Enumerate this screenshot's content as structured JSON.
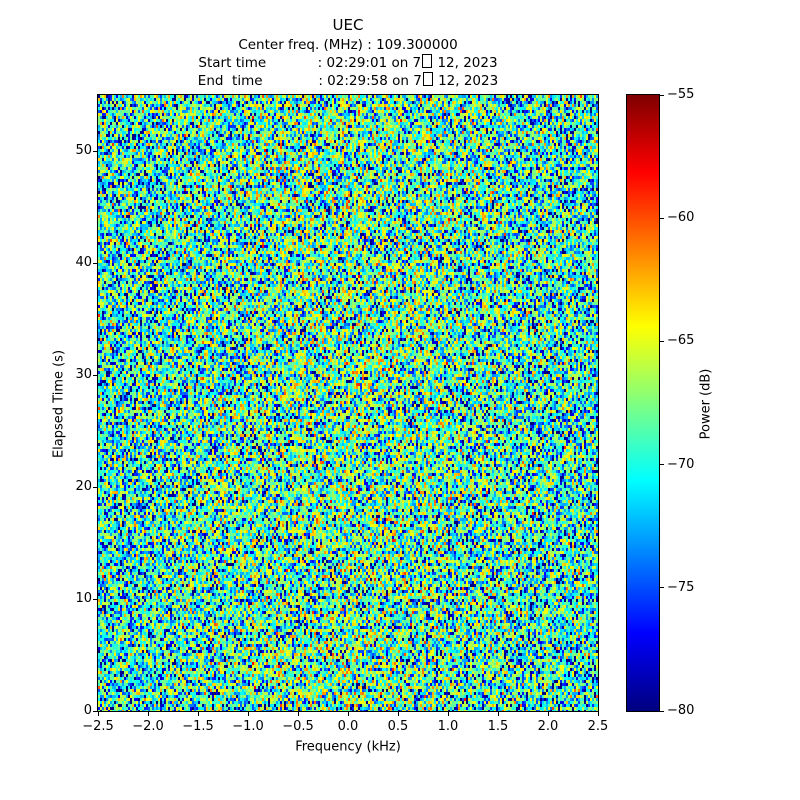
{
  "figure": {
    "header": {
      "title": "UEC",
      "center_freq_line": "Center freq. (MHz) : 109.300000",
      "start_line_prefix": "Start time            : 02:29:01 on 7",
      "start_line_suffix": " 12, 2023",
      "end_line_prefix": "End  time             : 02:29:58 on 7",
      "end_line_suffix": " 12, 2023",
      "missing_glyph": "□"
    }
  },
  "chart_data": {
    "type": "heatmap",
    "subtype": "spectrogram-waterfall",
    "title": "UEC",
    "center_freq_mhz": "109.300000",
    "start_time": "02:29:01 on 7 12, 2023",
    "end_time": "02:29:58 on 7 12, 2023",
    "xlabel": "Frequency (kHz)",
    "ylabel": "Elapsed Time (s)",
    "xlim": [
      -2.5,
      2.5
    ],
    "ylim": [
      0,
      55
    ],
    "xticks": [
      -2.5,
      -2.0,
      -1.5,
      -1.0,
      -0.5,
      0.0,
      0.5,
      1.0,
      1.5,
      2.0,
      2.5
    ],
    "xtick_labels": [
      "−2.5",
      "−2.0",
      "−1.5",
      "−1.0",
      "−0.5",
      "0.0",
      "0.5",
      "1.0",
      "1.5",
      "2.0",
      "2.5"
    ],
    "yticks": [
      0,
      10,
      20,
      30,
      40,
      50
    ],
    "ytick_labels": [
      "0",
      "10",
      "20",
      "30",
      "40",
      "50"
    ],
    "grid": false,
    "colormap": "jet",
    "colorbar": {
      "label": "Power (dB)",
      "vmin": -80,
      "vmax": -55,
      "ticks": [
        -55,
        -60,
        -65,
        -70,
        -75,
        -80
      ],
      "tick_labels": [
        "−55",
        "−60",
        "−65",
        "−70",
        "−75",
        "−80"
      ],
      "position": "right"
    },
    "noise_field": {
      "description": "broadband random noise, median near -70 dB, mild hot band centered at 0 kHz",
      "distribution": "exponential-power-in-dB",
      "ref_db": -68.9,
      "center_bump_db": 2.0,
      "center_bump_sigma_khz": 1.4,
      "cols": 250,
      "rows": 206,
      "seed": 1234
    }
  }
}
